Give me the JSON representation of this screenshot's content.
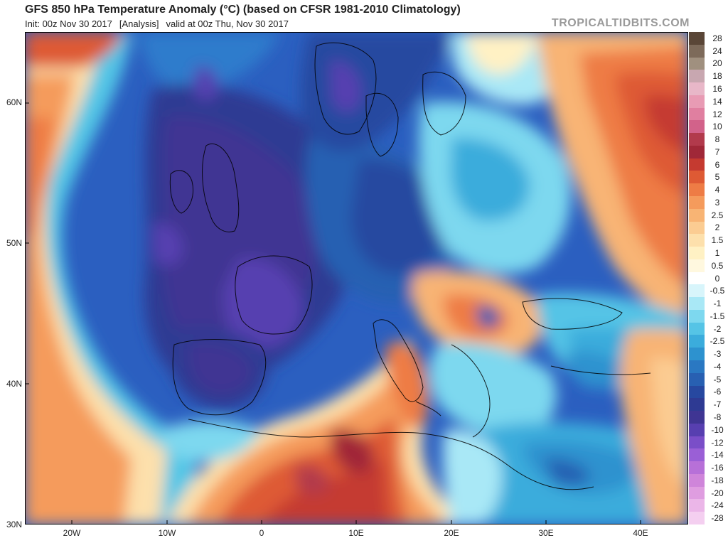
{
  "header": {
    "title": "GFS 850 hPa Temperature Anomaly (°C) (based on CFSR 1981-2010 Climatology)",
    "init": "Init: 00z Nov 30 2017",
    "analysis": "[Analysis]",
    "valid": "valid at 00z Thu, Nov 30 2017",
    "brand": "TROPICALTIDBITS.COM"
  },
  "map": {
    "lat_labels": [
      "60N",
      "50N",
      "40N",
      "30N"
    ],
    "lon_labels": [
      "20W",
      "10W",
      "0",
      "10E",
      "20E",
      "30E",
      "40E"
    ],
    "lat_range": [
      30,
      65
    ],
    "lon_range": [
      -25,
      45
    ]
  },
  "colorbar": {
    "labels": [
      "28",
      "24",
      "20",
      "18",
      "16",
      "14",
      "12",
      "10",
      "8",
      "7",
      "6",
      "5",
      "4",
      "3",
      "2.5",
      "2",
      "1.5",
      "1",
      "0.5",
      "0",
      "-0.5",
      "-1",
      "-1.5",
      "-2",
      "-2.5",
      "-3",
      "-4",
      "-5",
      "-6",
      "-7",
      "-8",
      "-10",
      "-12",
      "-14",
      "-16",
      "-18",
      "-20",
      "-24",
      "-28"
    ],
    "colors": [
      "#5a4637",
      "#7d6a5a",
      "#a0907f",
      "#c8a7b0",
      "#e8b7c8",
      "#e89bb4",
      "#e07fa0",
      "#d2628a",
      "#b23a4c",
      "#a02838",
      "#c53a30",
      "#de5a34",
      "#ee7c45",
      "#f59b5c",
      "#f8b474",
      "#fbcc92",
      "#fde0ac",
      "#fff1c4",
      "#fff8df",
      "#ffffff",
      "#d8f5fb",
      "#a9e8f6",
      "#7dd8ef",
      "#55c4e6",
      "#3bacdc",
      "#2d92cf",
      "#2a78c2",
      "#2860b2",
      "#2748a0",
      "#2e3a93",
      "#3f3593",
      "#573fb0",
      "#7a4ec8",
      "#9a5fd6",
      "#b770d8",
      "#cf85da",
      "#df9de0",
      "#ebb6e8",
      "#f4cff0"
    ]
  }
}
